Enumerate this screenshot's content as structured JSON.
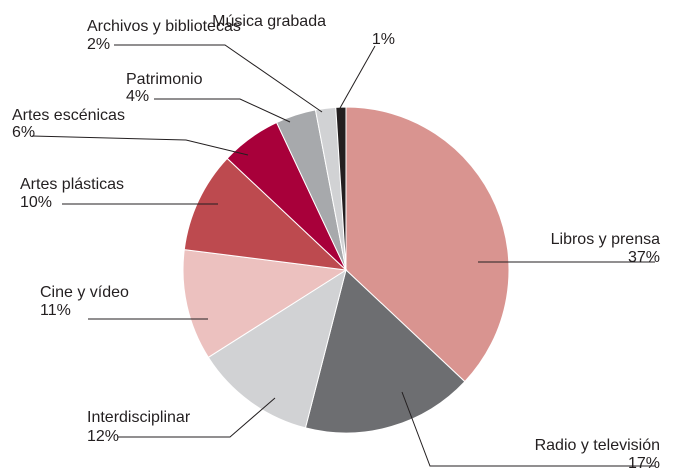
{
  "chart_data": {
    "type": "pie",
    "categories": [
      "Libros y prensa",
      "Radio y televisión",
      "Interdisciplinar",
      "Cine y vídeo",
      "Artes plásticas",
      "Artes escénicas",
      "Patrimonio",
      "Archivos y bibliotecas",
      "Música grabada"
    ],
    "values": [
      37,
      17,
      12,
      11,
      10,
      6,
      4,
      2,
      1
    ],
    "value_labels": [
      "37%",
      "17%",
      "12%",
      "11%",
      "10%",
      "6%",
      "4%",
      "2%",
      "1%"
    ],
    "colors": [
      "#d99490",
      "#6d6e71",
      "#d1d2d4",
      "#ecc1bf",
      "#bd4a4f",
      "#a8003a",
      "#a7a9ac",
      "#d1d2d4",
      "#231f20"
    ]
  }
}
